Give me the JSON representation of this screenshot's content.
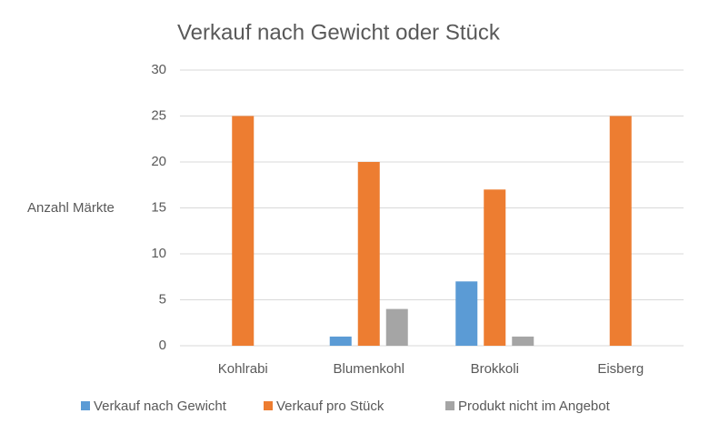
{
  "chart_data": {
    "type": "bar",
    "title": "Verkauf nach Gewicht oder Stück",
    "y_label": "Anzahl Märkte",
    "categories": [
      "Kohlrabi",
      "Blumenkohl",
      "Brokkoli",
      "Eisberg"
    ],
    "series": [
      {
        "name": "Verkauf nach Gewicht",
        "color": "#5b9bd5",
        "values": [
          0,
          1,
          7,
          0
        ]
      },
      {
        "name": "Verkauf pro Stück",
        "color": "#ed7d31",
        "values": [
          25,
          20,
          17,
          25
        ]
      },
      {
        "name": "Produkt nicht im Angebot",
        "color": "#a5a5a5",
        "values": [
          0,
          4,
          1,
          0
        ]
      }
    ],
    "ylim": [
      0,
      30
    ],
    "yticks": [
      0,
      5,
      10,
      15,
      20,
      25,
      30
    ],
    "grid": true,
    "legend": "bottom"
  }
}
